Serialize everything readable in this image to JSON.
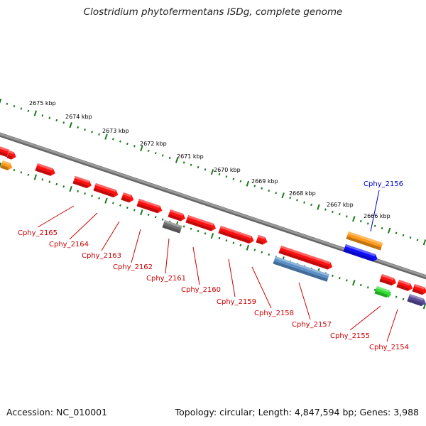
{
  "header": {
    "title": "Clostridium phytofermentans ISDg, complete genome"
  },
  "footer": {
    "accession": "Accession: NC_010001",
    "summary": "Topology: circular; Length: 4,847,594 bp; Genes: 3,988"
  },
  "map": {
    "scale_labels": [
      "2675 kbp",
      "2674 kbp",
      "2673 kbp",
      "2672 kbp",
      "2671 kbp",
      "2670 kbp",
      "2669 kbp",
      "2668 kbp",
      "2667 kbp",
      "2666 kbp"
    ],
    "gene_labels": [
      "Cphy_2165",
      "Cphy_2164",
      "Cphy_2163",
      "Cphy_2162",
      "Cphy_2161",
      "Cphy_2160",
      "Cphy_2159",
      "Cphy_2158",
      "Cphy_2157",
      "Cphy_2156",
      "Cphy_2155",
      "Cphy_2154"
    ],
    "colors": {
      "backbone": "#8a8a8a",
      "ticks": "#1a7a1a",
      "gene_red": "#ff1010",
      "gene_orange": "#ff9a1a",
      "gene_gray": "#707070",
      "gene_blue": "#1010ff",
      "gene_steelblue": "#5b90c8",
      "gene_green": "#33dd33",
      "gene_purple": "#5a4a9a",
      "label_red": "#cc0000",
      "label_blue": "#0000cc"
    }
  }
}
